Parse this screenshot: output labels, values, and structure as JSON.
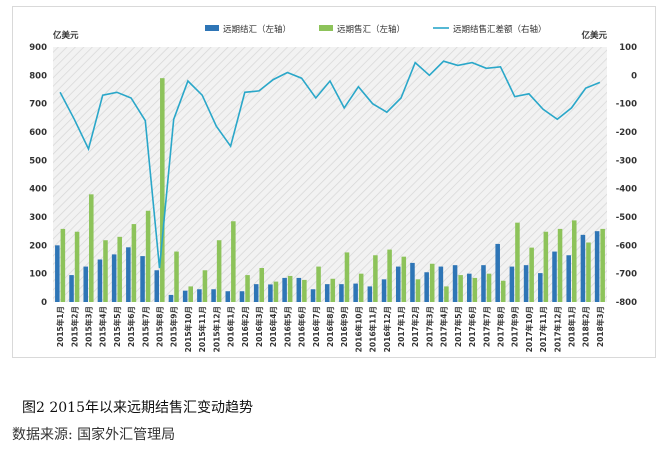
{
  "figure": {
    "caption": "图2   2015年以来远期结售汇变动趋势",
    "source": "数据来源: 国家外汇管理局"
  },
  "chart_data": {
    "type": "bar+line",
    "unit_left": "亿美元",
    "unit_right": "亿美元",
    "legend": [
      {
        "name": "远期结汇（左轴）",
        "color": "#2e75b6",
        "kind": "bar"
      },
      {
        "name": "远期售汇（左轴）",
        "color": "#8dc35a",
        "kind": "bar"
      },
      {
        "name": "远期结售汇差额（右轴）",
        "color": "#2aa7c9",
        "kind": "line"
      }
    ],
    "ylim_left": [
      0,
      900
    ],
    "ylim_right": [
      -800,
      100
    ],
    "yticks_left": [
      0,
      100,
      200,
      300,
      400,
      500,
      600,
      700,
      800,
      900
    ],
    "yticks_right": [
      -800,
      -700,
      -600,
      -500,
      -400,
      -300,
      -200,
      -100,
      0,
      100
    ],
    "categories": [
      "2015年1月",
      "2015年2月",
      "2015年3月",
      "2015年4月",
      "2015年5月",
      "2015年6月",
      "2015年7月",
      "2015年8月",
      "2015年9月",
      "2015年10月",
      "2015年11月",
      "2015年12月",
      "2016年1月",
      "2016年2月",
      "2016年3月",
      "2016年4月",
      "2016年5月",
      "2016年6月",
      "2016年7月",
      "2016年8月",
      "2016年9月",
      "2016年10月",
      "2016年11月",
      "2016年12月",
      "2017年1月",
      "2017年2月",
      "2017年3月",
      "2017年4月",
      "2017年5月",
      "2017年6月",
      "2017年7月",
      "2017年8月",
      "2017年9月",
      "2017年10月",
      "2017年11月",
      "2017年12月",
      "2018年1月",
      "2018年2月",
      "2018年3月"
    ],
    "series": [
      {
        "name": "远期结汇（左轴）",
        "axis": "left",
        "values": [
          200,
          95,
          125,
          150,
          168,
          193,
          162,
          112,
          25,
          40,
          45,
          45,
          38,
          38,
          63,
          62,
          85,
          85,
          45,
          63,
          63,
          65,
          55,
          80,
          125,
          138,
          105,
          125,
          130,
          100,
          130,
          205,
          125,
          130,
          102,
          178,
          165,
          237,
          250
        ]
      },
      {
        "name": "远期售汇（左轴）",
        "axis": "right_hidden",
        "values": [
          258,
          248,
          380,
          218,
          230,
          275,
          322,
          790,
          178,
          55,
          112,
          218,
          285,
          95,
          120,
          72,
          92,
          78,
          125,
          82,
          175,
          100,
          165,
          185,
          160,
          80,
          135,
          55,
          95,
          85,
          100,
          75,
          280,
          192,
          248,
          258,
          288,
          210,
          258
        ]
      },
      {
        "name": "远期结售汇差额（右轴）",
        "axis": "right",
        "values": [
          -60,
          -155,
          -260,
          -70,
          -60,
          -80,
          -160,
          -680,
          -155,
          -20,
          -70,
          -180,
          -250,
          -60,
          -55,
          -15,
          10,
          -10,
          -80,
          -20,
          -115,
          -40,
          -100,
          -130,
          -80,
          45,
          0,
          50,
          35,
          45,
          25,
          30,
          -75,
          -65,
          -120,
          -155,
          -115,
          -45,
          -25
        ]
      }
    ]
  }
}
